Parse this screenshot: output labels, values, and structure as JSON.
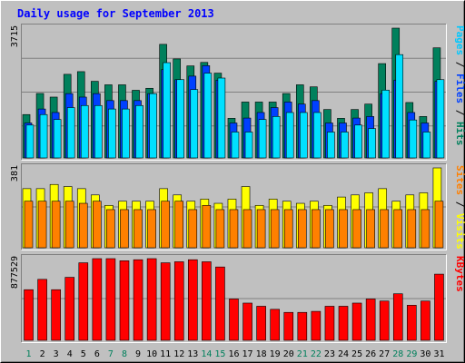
{
  "chart_data": {
    "type": "bar",
    "title": "Daily usage for September 2013",
    "x": [
      "1",
      "2",
      "3",
      "4",
      "5",
      "6",
      "7",
      "8",
      "9",
      "10",
      "11",
      "12",
      "13",
      "14",
      "15",
      "16",
      "17",
      "18",
      "19",
      "20",
      "21",
      "22",
      "23",
      "24",
      "25",
      "26",
      "27",
      "28",
      "29",
      "30",
      "31"
    ],
    "x_label_colors": [
      "#00805c",
      "#000000",
      "#000000",
      "#000000",
      "#000000",
      "#000000",
      "#00805c",
      "#00805c",
      "#000000",
      "#000000",
      "#000000",
      "#000000",
      "#000000",
      "#00805c",
      "#00805c",
      "#000000",
      "#000000",
      "#000000",
      "#000000",
      "#000000",
      "#00805c",
      "#00805c",
      "#000000",
      "#000000",
      "#000000",
      "#000000",
      "#000000",
      "#00805c",
      "#00805c",
      "#000000",
      "#000000"
    ],
    "panels": [
      {
        "name": "hits-files-pages",
        "y_max_label": "3715",
        "y_max": 3715,
        "side_label": [
          {
            "text": "Pages",
            "color": "#00c8ff"
          },
          {
            "text": " / ",
            "color": "#000000"
          },
          {
            "text": "Files",
            "color": "#0040ff"
          },
          {
            "text": " / ",
            "color": "#000000"
          },
          {
            "text": "Hits",
            "color": "#00805c"
          }
        ],
        "series": [
          {
            "name": "Hits",
            "color": "#00805c",
            "values": [
              1241,
              1845,
              1741,
              2393,
              2470,
              2193,
              2093,
              2093,
              1936,
              1993,
              3251,
              2834,
              2634,
              2734,
              2427,
              1134,
              1600,
              1600,
              1600,
              1843,
              2093,
              2034,
              1386,
              1134,
              1386,
              1541,
              2700,
              3715,
              1586,
              1186,
              3151
            ]
          },
          {
            "name": "Files",
            "color": "#0040ff",
            "values": [
              1000,
              1400,
              1300,
              1841,
              1741,
              1841,
              1641,
              1641,
              1641,
              1841,
              2527,
              2241,
              2341,
              2641,
              2227,
              1000,
              1141,
              1300,
              1441,
              1600,
              1541,
              1641,
              1000,
              1000,
              1141,
              1186,
              1841,
              2227,
              1300,
              1000,
              2190
            ]
          },
          {
            "name": "Pages",
            "color": "#00e0ff",
            "values": [
              941,
              1241,
              1100,
              1441,
              1500,
              1500,
              1400,
              1400,
              1500,
              1841,
              2727,
              2241,
              1957,
              2427,
              2286,
              741,
              741,
              1100,
              1186,
              1300,
              1300,
              1300,
              741,
              741,
              941,
              841,
              1941,
              2957,
              1086,
              741,
              2241
            ]
          }
        ]
      },
      {
        "name": "sites-visits",
        "y_max_label": "381",
        "y_max": 381,
        "side_label": [
          {
            "text": "Sites",
            "color": "#ff8000"
          },
          {
            "text": " / ",
            "color": "#000000"
          },
          {
            "text": "Visits",
            "color": "#ffff00"
          }
        ],
        "series": [
          {
            "name": "Visits",
            "color": "#ffff00",
            "values": [
              282,
              282,
              302,
              292,
              282,
              252,
              202,
              222,
              222,
              222,
              282,
              252,
              222,
              232,
              212,
              232,
              292,
              202,
              232,
              222,
              212,
              222,
              202,
              242,
              252,
              262,
              282,
              222,
              252,
              262,
              381
            ]
          },
          {
            "name": "Sites",
            "color": "#ff8000",
            "values": [
              222,
              222,
              222,
              222,
              212,
              222,
              182,
              182,
              182,
              182,
              222,
              222,
              182,
              202,
              182,
              182,
              182,
              182,
              182,
              182,
              182,
              182,
              182,
              182,
              182,
              182,
              182,
              182,
              182,
              182,
              222
            ]
          }
        ]
      },
      {
        "name": "kbytes",
        "y_max_label": "877529",
        "y_max": 877529,
        "side_label": [
          {
            "text": "KBytes",
            "color": "#ff0000"
          }
        ],
        "series": [
          {
            "name": "KBytes",
            "color": "#ff0000",
            "values": [
              544000,
              655000,
              544000,
              677000,
              833000,
              877529,
              877529,
              855000,
              866000,
              877529,
              833000,
              844000,
              866000,
              844000,
              788000,
              444000,
              400000,
              366000,
              333000,
              300000,
              300000,
              311000,
              366000,
              366000,
              400000,
              444000,
              422000,
              500000,
              377000,
              422000,
              711000
            ]
          }
        ]
      }
    ]
  }
}
